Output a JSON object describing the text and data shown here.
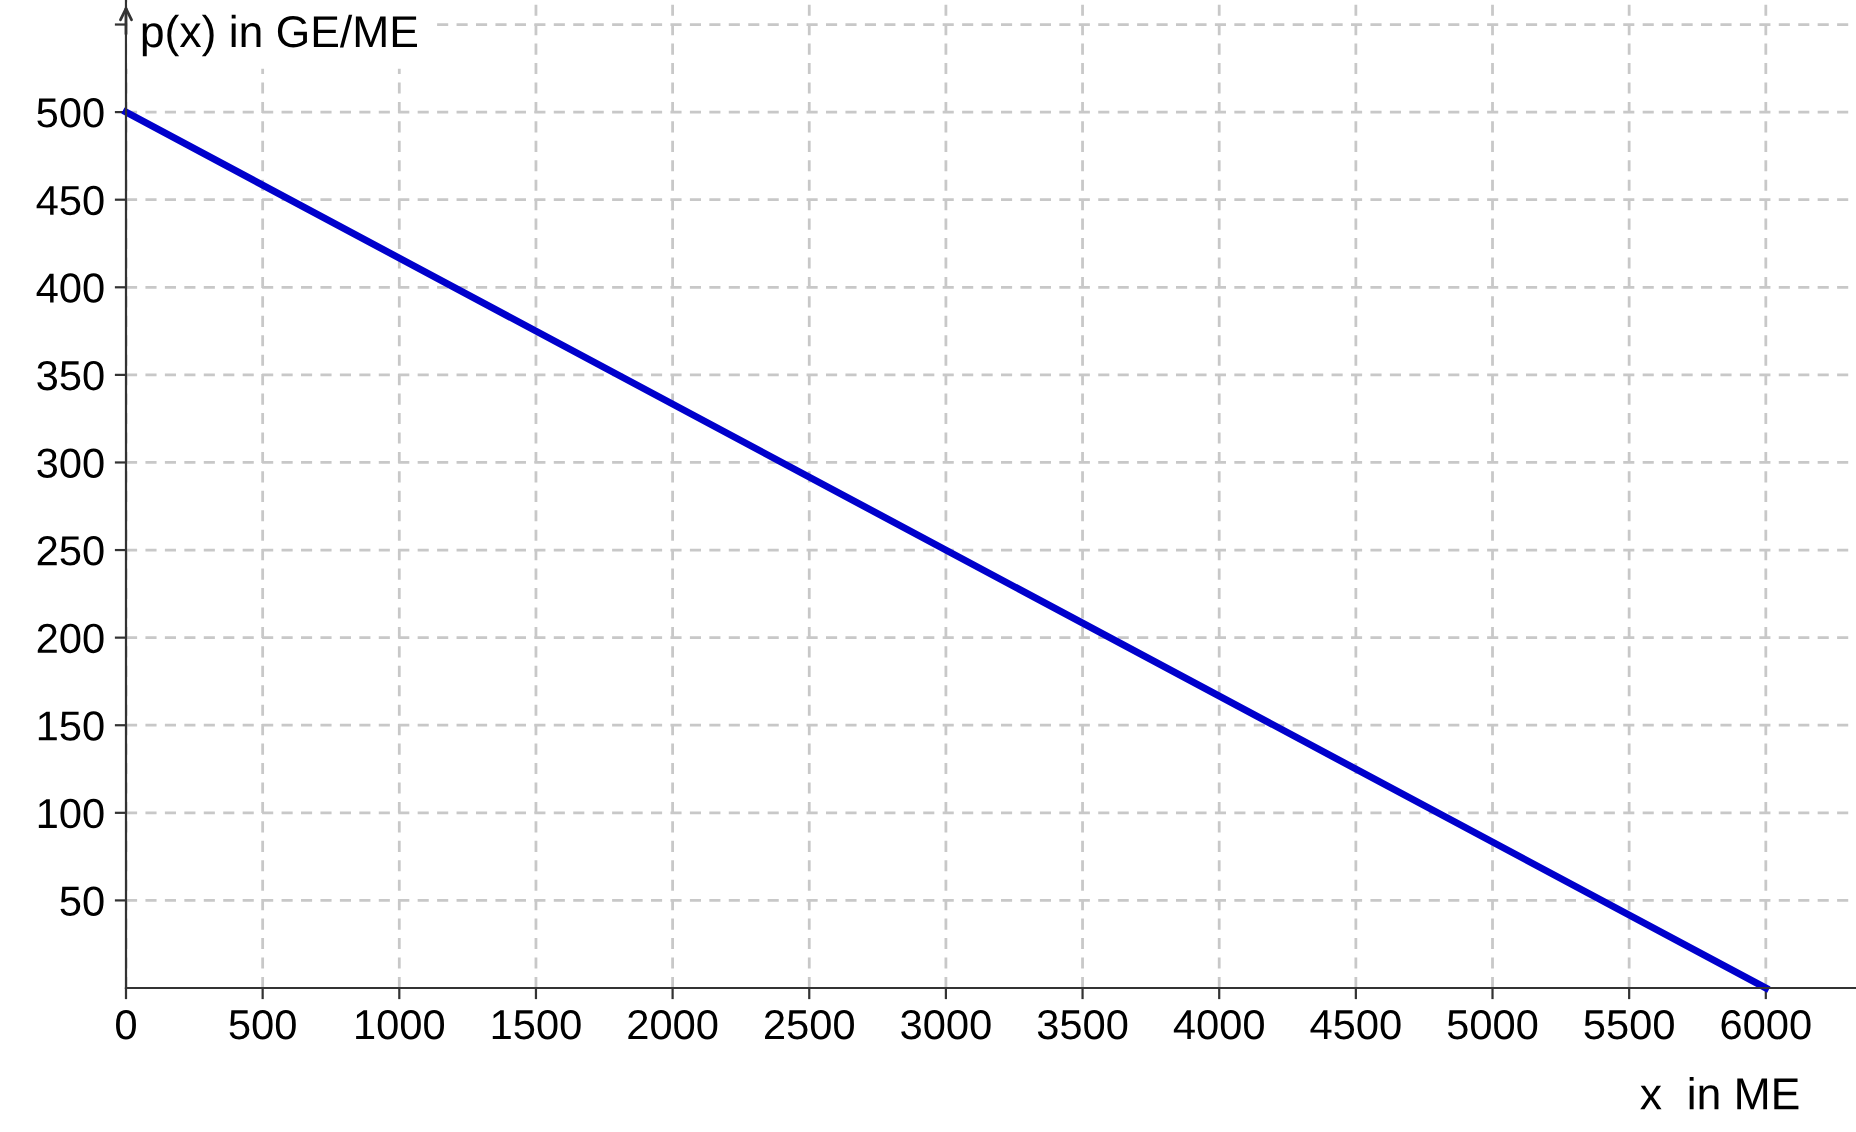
{
  "chart_data": {
    "type": "line",
    "xlabel": "x  in ME",
    "ylabel": "p(x) in GE/ME",
    "x": [
      0,
      6000
    ],
    "series": [
      {
        "color": "#0000cc",
        "values": [
          500,
          0
        ]
      }
    ],
    "xlim": [
      0,
      6330
    ],
    "ylim": [
      0,
      564
    ],
    "xticks": [
      0,
      500,
      1000,
      1500,
      2000,
      2500,
      3000,
      3500,
      4000,
      4500,
      5000,
      5500,
      6000
    ],
    "yticks": [
      50,
      100,
      150,
      200,
      250,
      300,
      350,
      400,
      450,
      500,
      {
        "value": 550,
        "label": null
      }
    ],
    "grid": true,
    "line_style": "solid",
    "marker": "none",
    "legend": false
  }
}
